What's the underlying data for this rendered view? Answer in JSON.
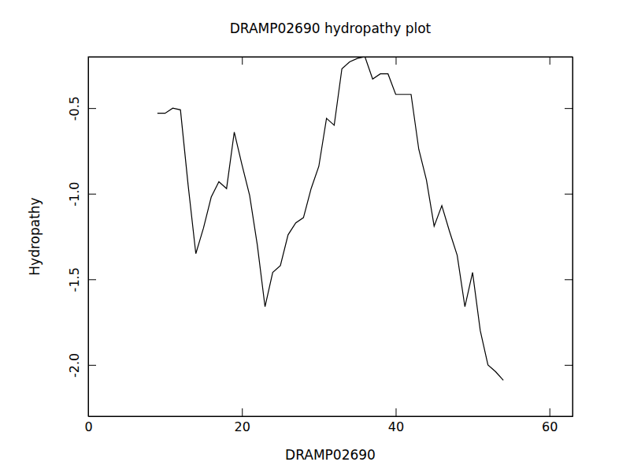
{
  "chart_data": {
    "type": "line",
    "title": "DRAMP02690 hydropathy plot",
    "x_label": "DRAMP02690",
    "y_label": "Hydropathy",
    "x": [
      9,
      10,
      11,
      12,
      13,
      14,
      15,
      16,
      17,
      18,
      19,
      20,
      21,
      22,
      23,
      24,
      25,
      26,
      27,
      28,
      29,
      30,
      31,
      32,
      33,
      34,
      35,
      36,
      37,
      38,
      39,
      40,
      41,
      42,
      43,
      44,
      45,
      46,
      47,
      48,
      49,
      50,
      51,
      52,
      53,
      54
    ],
    "values": [
      -0.53,
      -0.53,
      -0.5,
      -0.51,
      -0.95,
      -1.35,
      -1.2,
      -1.02,
      -0.93,
      -0.97,
      -0.64,
      -0.83,
      -1.01,
      -1.3,
      -1.66,
      -1.46,
      -1.42,
      -1.24,
      -1.17,
      -1.14,
      -0.97,
      -0.84,
      -0.56,
      -0.6,
      -0.27,
      -0.23,
      -0.21,
      -0.2,
      -0.33,
      -0.3,
      -0.3,
      -0.42,
      -0.42,
      -0.42,
      -0.74,
      -0.92,
      -1.19,
      -1.07,
      -1.22,
      -1.36,
      -1.66,
      -1.46,
      -1.8,
      -2.0,
      -2.04,
      -2.09
    ],
    "color": "#000000",
    "xlim": [
      0,
      63
    ],
    "xticks": [
      0,
      20,
      40,
      60
    ],
    "ylim": [
      -2.3,
      -0.2
    ],
    "yticks": [
      {
        "value": -2,
        "label": "-2.0"
      },
      -1.5,
      {
        "value": -1,
        "label": "-1.0"
      },
      -0.5
    ],
    "grid": false
  }
}
